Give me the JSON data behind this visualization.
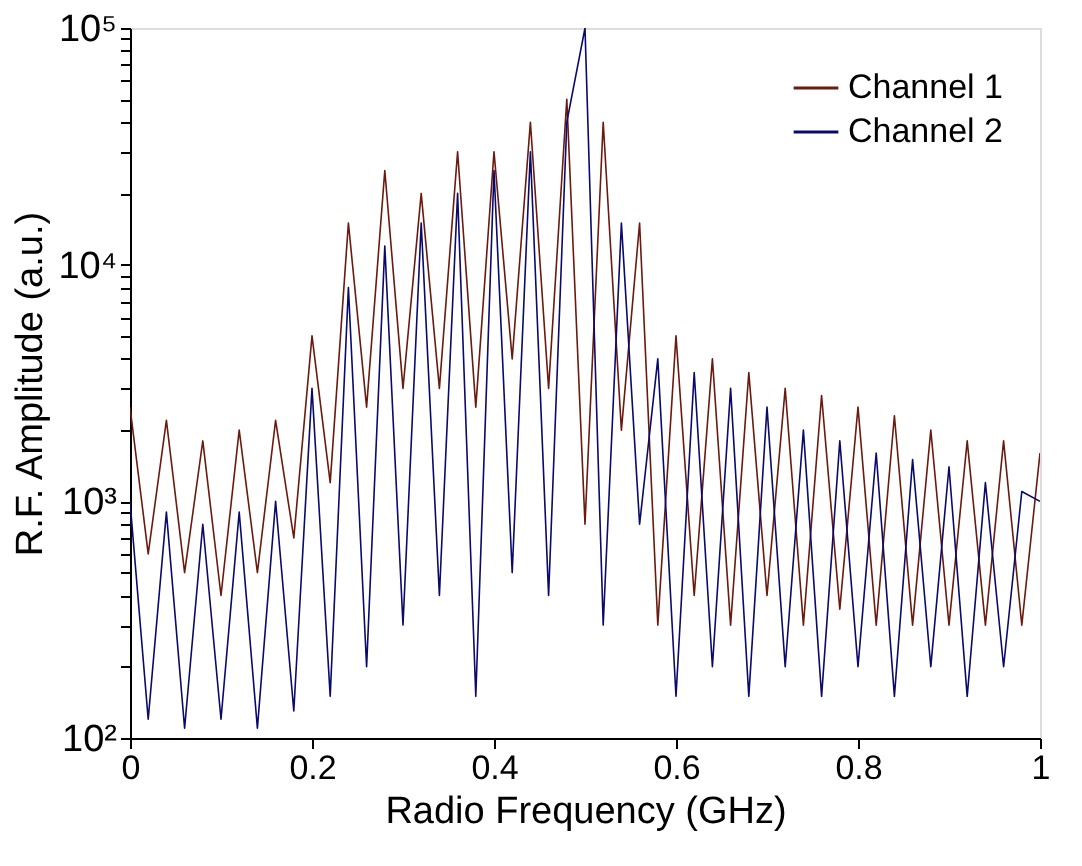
{
  "chart_data": {
    "type": "line",
    "xlabel": "Radio Frequency (GHz)",
    "ylabel": "R.F. Amplitude (a.u.)",
    "x": [
      0,
      0.02,
      0.04,
      0.06,
      0.08,
      0.1,
      0.12,
      0.14,
      0.16,
      0.18,
      0.2,
      0.22,
      0.24,
      0.26,
      0.28,
      0.3,
      0.32,
      0.34,
      0.36,
      0.38,
      0.4,
      0.42,
      0.44,
      0.46,
      0.48,
      0.5,
      0.52,
      0.54,
      0.56,
      0.58,
      0.6,
      0.62,
      0.64,
      0.66,
      0.68,
      0.7,
      0.72,
      0.74,
      0.76,
      0.78,
      0.8,
      0.82,
      0.84,
      0.86,
      0.88,
      0.9,
      0.92,
      0.94,
      0.96,
      0.98,
      1.0
    ],
    "series": [
      {
        "name": "Channel 1",
        "color": "#6b1a0e",
        "values": [
          2500,
          600,
          2200,
          500,
          1800,
          400,
          2000,
          500,
          2200,
          700,
          5000,
          1200,
          15000,
          2500,
          25000,
          3000,
          20000,
          3000,
          30000,
          2500,
          30000,
          4000,
          40000,
          3000,
          50000,
          800,
          40000,
          2000,
          15000,
          300,
          5000,
          400,
          4000,
          300,
          3500,
          400,
          3000,
          300,
          2800,
          350,
          2500,
          300,
          2300,
          300,
          2000,
          300,
          1800,
          300,
          1800,
          300,
          1600
        ]
      },
      {
        "name": "Channel 2",
        "color": "#0a0a6b",
        "values": [
          1000,
          120,
          900,
          110,
          800,
          120,
          900,
          110,
          1000,
          130,
          3000,
          150,
          8000,
          200,
          12000,
          300,
          15000,
          400,
          20000,
          150,
          25000,
          500,
          30000,
          400,
          40000,
          100000,
          300,
          15000,
          800,
          4000,
          150,
          3500,
          200,
          3000,
          150,
          2500,
          200,
          2000,
          150,
          1800,
          200,
          1600,
          150,
          1500,
          200,
          1400,
          150,
          1200,
          200,
          1100,
          1000
        ]
      }
    ],
    "log": "y",
    "xlim": [
      0,
      1
    ],
    "xticks": [
      0,
      0.2,
      0.4,
      0.6,
      0.8,
      1
    ],
    "ylim": [
      100,
      100000
    ],
    "yticks": [
      {
        "value": 100,
        "label": "10²"
      },
      {
        "value": 200,
        "label": null
      },
      {
        "value": 300,
        "label": null
      },
      {
        "value": 400,
        "label": null
      },
      {
        "value": 500,
        "label": null
      },
      {
        "value": 600,
        "label": null
      },
      {
        "value": 700,
        "label": null
      },
      {
        "value": 800,
        "label": null
      },
      {
        "value": 900,
        "label": null
      },
      {
        "value": 1000,
        "label": "10³"
      },
      {
        "value": 2000,
        "label": null
      },
      {
        "value": 3000,
        "label": null
      },
      {
        "value": 4000,
        "label": null
      },
      {
        "value": 5000,
        "label": null
      },
      {
        "value": 6000,
        "label": null
      },
      {
        "value": 7000,
        "label": null
      },
      {
        "value": 8000,
        "label": null
      },
      {
        "value": 9000,
        "label": null
      },
      {
        "value": 10000,
        "label": "10⁴"
      },
      {
        "value": 20000,
        "label": null
      },
      {
        "value": 30000,
        "label": null
      },
      {
        "value": 40000,
        "label": null
      },
      {
        "value": 50000,
        "label": null
      },
      {
        "value": 60000,
        "label": null
      },
      {
        "value": 70000,
        "label": null
      },
      {
        "value": 80000,
        "label": null
      },
      {
        "value": 90000,
        "label": null
      },
      {
        "value": 100000,
        "label": "10⁵"
      }
    ],
    "grid": false,
    "legend": "top right",
    "marker": "none",
    "line_style": "solid"
  }
}
